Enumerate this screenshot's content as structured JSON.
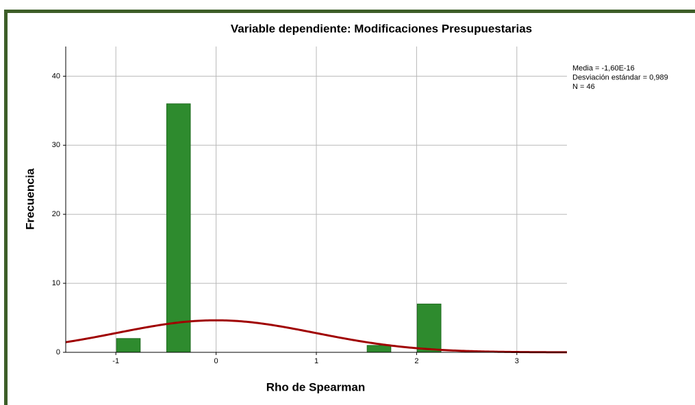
{
  "chart_data": {
    "type": "histogram",
    "title": "Variable dependiente: Modificaciones Presupuestarias",
    "xlabel": "Rho de Spearman",
    "ylabel": "Frecuencia",
    "bins": [
      -1,
      -0.75,
      -0.5,
      -0.25,
      0,
      0.25,
      0.5,
      0.75,
      1,
      1.25,
      1.5,
      1.75,
      2,
      2.25
    ],
    "values": [
      2,
      0,
      36,
      0,
      0,
      0,
      0,
      0,
      0,
      0,
      1,
      0,
      7
    ],
    "color": "#2e8b2e",
    "xlim": [
      -1.5,
      3.5
    ],
    "xticks": [
      -1,
      0,
      1,
      2,
      3
    ],
    "ylim": [
      0,
      44.3
    ],
    "yticks": [
      0,
      10,
      20,
      30,
      40
    ],
    "grid": true,
    "curve": {
      "mean": -1.6e-16,
      "sd": 0.989,
      "n": 46,
      "color": "#a00000"
    },
    "stats": [
      "Media = -1,60E-16",
      "Desviación estándar = 0,989",
      "N = 46"
    ]
  }
}
